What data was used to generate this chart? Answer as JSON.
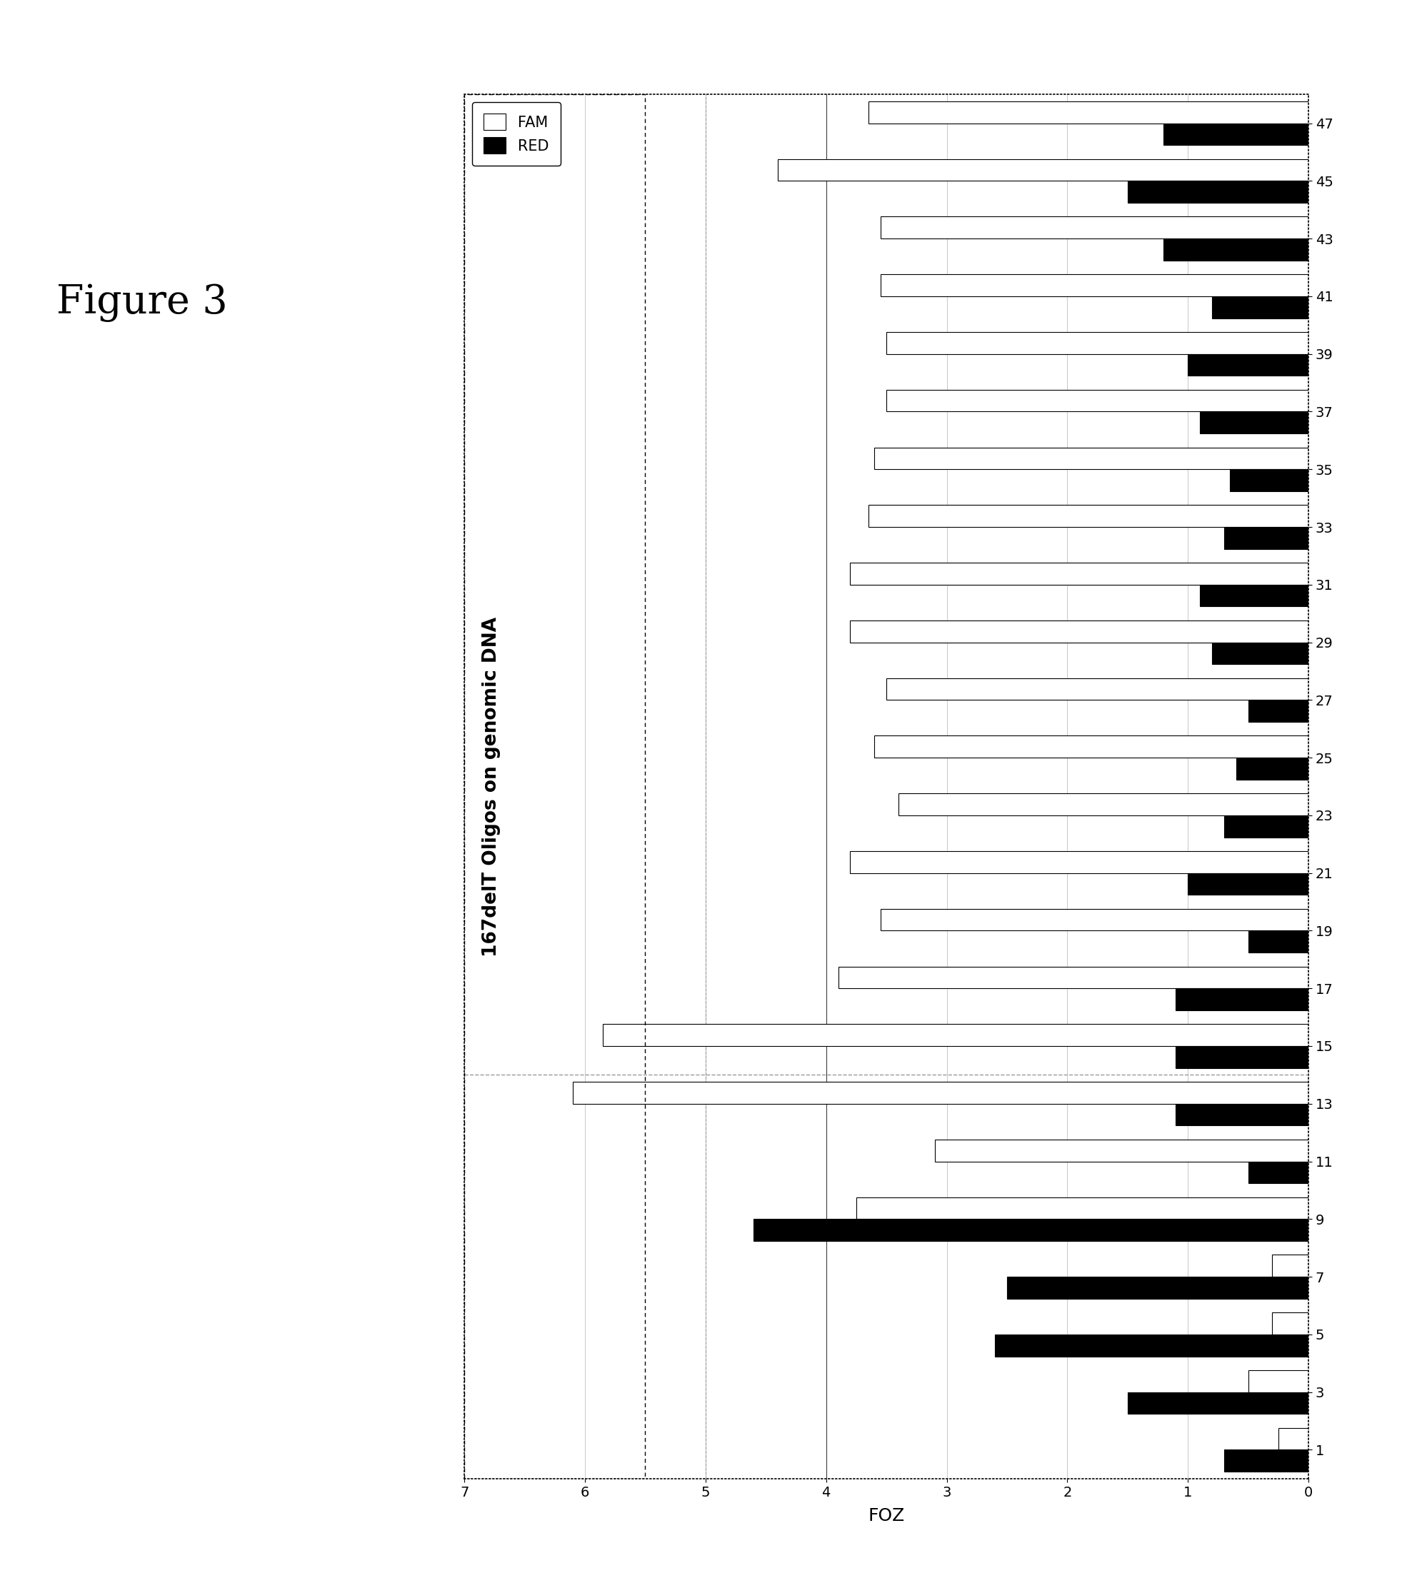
{
  "title": "167delT Oligos on genomic DNA",
  "figure_title": "Figure 3",
  "xlabel": "FOZ",
  "categories": [
    1,
    3,
    5,
    7,
    9,
    11,
    13,
    15,
    17,
    19,
    21,
    23,
    25,
    27,
    29,
    31,
    33,
    35,
    37,
    39,
    41,
    43,
    45,
    47
  ],
  "fam_values": [
    0.25,
    0.5,
    0.3,
    0.3,
    3.75,
    3.1,
    6.1,
    5.85,
    3.9,
    3.55,
    3.8,
    3.4,
    3.6,
    3.5,
    3.8,
    3.8,
    3.65,
    3.6,
    3.5,
    3.5,
    3.55,
    3.55,
    4.4,
    3.65
  ],
  "red_values": [
    0.7,
    1.5,
    2.6,
    2.5,
    4.6,
    0.5,
    1.1,
    1.1,
    1.1,
    0.5,
    1.0,
    0.7,
    0.6,
    0.5,
    0.8,
    0.9,
    0.7,
    0.65,
    0.9,
    1.0,
    0.8,
    1.2,
    1.5,
    1.2
  ],
  "xlim": [
    0,
    7
  ],
  "bar_height": 0.38,
  "fam_color": "white",
  "fam_edgecolor": "black",
  "red_color": "black",
  "red_edgecolor": "black",
  "background_color": "white",
  "legend_labels": [
    "FAM",
    "RED"
  ],
  "grid_xticks": [
    0,
    1,
    2,
    3,
    4,
    5,
    6,
    7
  ],
  "solid_vlines": [
    4.0
  ],
  "dashed_vline": 5.0,
  "hline_y_index": 6.5
}
